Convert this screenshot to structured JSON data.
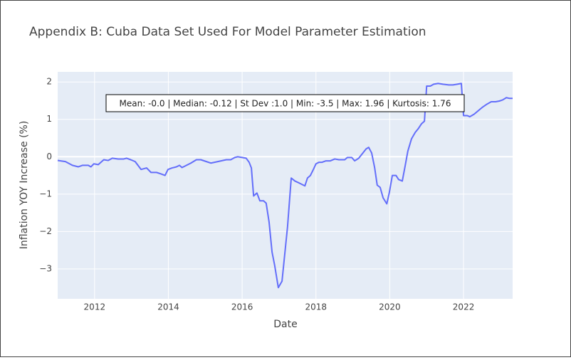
{
  "chart_data": {
    "type": "line",
    "title": "Appendix B: Cuba Data Set Used For Model Parameter Estimation",
    "xlabel": "Date",
    "ylabel": "Inflation YOY Increase (%)",
    "annotation": "Mean: -0.0 | Median: -0.12 | St Dev :1.0 | Min: -3.5 | Max: 1.96 | Kurtosis: 1.76",
    "color": "#636efa",
    "grid": true,
    "xlim": [
      2011.0,
      2023.33
    ],
    "ylim": [
      -3.8,
      2.27
    ],
    "xticks": [
      2012,
      2014,
      2016,
      2018,
      2020,
      2022
    ],
    "yticks": [
      {
        "value": -3,
        "label": "−3"
      },
      {
        "value": -2,
        "label": "−2"
      },
      {
        "value": -1,
        "label": "−1"
      },
      0,
      1,
      2
    ],
    "x": [
      2011.0,
      2011.21,
      2011.4,
      2011.56,
      2011.67,
      2011.83,
      2011.9,
      2011.98,
      2012.1,
      2012.25,
      2012.37,
      2012.48,
      2012.64,
      2012.79,
      2012.87,
      2012.98,
      2013.1,
      2013.26,
      2013.41,
      2013.53,
      2013.68,
      2013.8,
      2013.91,
      2013.99,
      2014.1,
      2014.22,
      2014.3,
      2014.37,
      2014.49,
      2014.61,
      2014.76,
      2014.88,
      2015.03,
      2015.15,
      2015.34,
      2015.57,
      2015.69,
      2015.8,
      2015.88,
      2016.0,
      2016.11,
      2016.19,
      2016.25,
      2016.31,
      2016.4,
      2016.48,
      2016.58,
      2016.65,
      2016.73,
      2016.81,
      2016.88,
      2016.98,
      2017.08,
      2017.23,
      2017.33,
      2017.43,
      2017.54,
      2017.7,
      2017.77,
      2017.85,
      2017.93,
      2018.0,
      2018.08,
      2018.16,
      2018.27,
      2018.39,
      2018.51,
      2018.62,
      2018.78,
      2018.85,
      2018.97,
      2019.05,
      2019.16,
      2019.28,
      2019.36,
      2019.43,
      2019.51,
      2019.59,
      2019.66,
      2019.74,
      2019.82,
      2019.92,
      2019.99,
      2020.07,
      2020.17,
      2020.24,
      2020.34,
      2020.42,
      2020.49,
      2020.59,
      2020.69,
      2020.78,
      2020.86,
      2020.94,
      2021.0,
      2021.1,
      2021.19,
      2021.31,
      2021.44,
      2021.6,
      2021.71,
      2021.83,
      2021.94,
      2022.0,
      2022.1,
      2022.17,
      2022.29,
      2022.41,
      2022.52,
      2022.64,
      2022.75,
      2022.87,
      2022.97,
      2023.06,
      2023.16,
      2023.25,
      2023.33
    ],
    "values": [
      -0.1,
      -0.13,
      -0.23,
      -0.27,
      -0.23,
      -0.23,
      -0.27,
      -0.19,
      -0.21,
      -0.08,
      -0.1,
      -0.04,
      -0.06,
      -0.06,
      -0.04,
      -0.08,
      -0.13,
      -0.34,
      -0.3,
      -0.42,
      -0.42,
      -0.46,
      -0.5,
      -0.34,
      -0.3,
      -0.27,
      -0.23,
      -0.29,
      -0.23,
      -0.17,
      -0.08,
      -0.08,
      -0.13,
      -0.17,
      -0.13,
      -0.08,
      -0.08,
      -0.02,
      0,
      -0.02,
      -0.04,
      -0.15,
      -0.3,
      -1.05,
      -0.97,
      -1.18,
      -1.18,
      -1.24,
      -1.75,
      -2.55,
      -2.9,
      -3.5,
      -3.33,
      -1.87,
      -0.57,
      -0.65,
      -0.7,
      -0.78,
      -0.57,
      -0.5,
      -0.34,
      -0.19,
      -0.15,
      -0.15,
      -0.11,
      -0.11,
      -0.06,
      -0.08,
      -0.08,
      -0.02,
      -0.02,
      -0.11,
      -0.04,
      0.11,
      0.21,
      0.25,
      0.1,
      -0.29,
      -0.76,
      -0.82,
      -1.1,
      -1.26,
      -0.95,
      -0.5,
      -0.5,
      -0.61,
      -0.65,
      -0.23,
      0.15,
      0.48,
      0.65,
      0.76,
      0.88,
      0.95,
      1.89,
      1.89,
      1.94,
      1.96,
      1.94,
      1.92,
      1.92,
      1.94,
      1.96,
      1.1,
      1.1,
      1.07,
      1.14,
      1.24,
      1.33,
      1.41,
      1.47,
      1.47,
      1.49,
      1.52,
      1.58,
      1.56,
      1.56
    ]
  }
}
